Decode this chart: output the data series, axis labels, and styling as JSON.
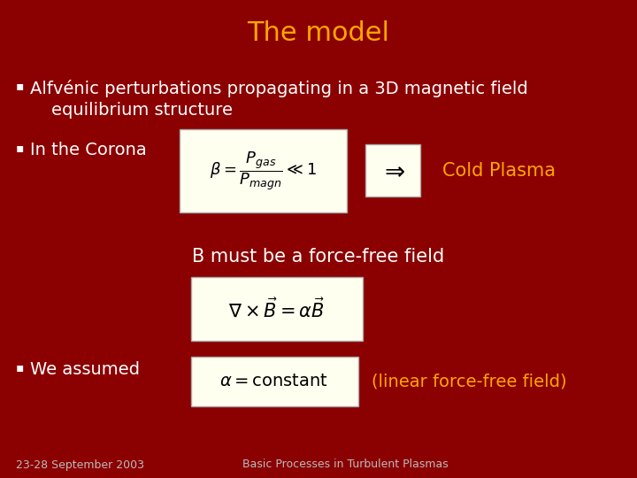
{
  "bg_color": "#8B0000",
  "title": "The model",
  "title_color": "#FFA500",
  "title_fontsize": 22,
  "bullet_color": "#FFFFFF",
  "bullet_fontsize": 14,
  "orange_color": "#FFA500",
  "formula_bg": "#FFFFF0",
  "footer_left": "23-28 September 2003",
  "footer_right": "Basic Processes in Turbulent Plasmas",
  "footer_fontsize": 9,
  "footer_color": "#BBBBBB"
}
